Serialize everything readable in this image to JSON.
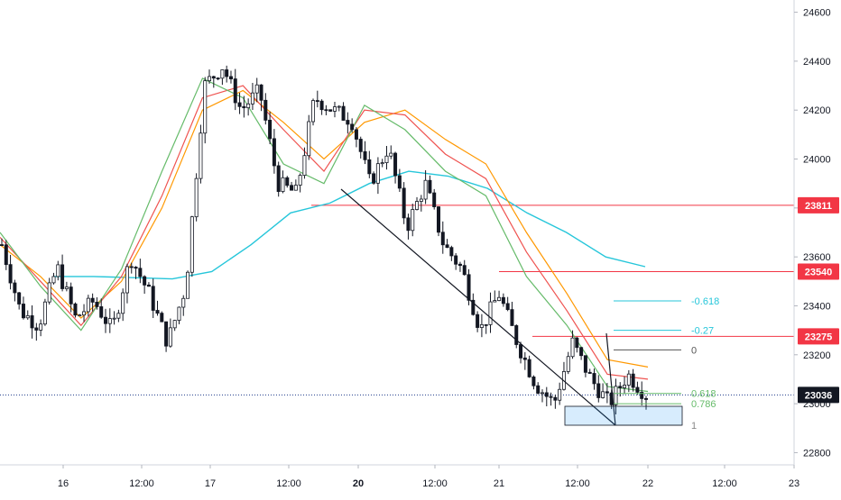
{
  "chart_data": {
    "type": "candlestick",
    "title": "",
    "xlabel": "",
    "ylabel": "",
    "ylim": [
      22750,
      24650
    ],
    "grid": false,
    "y_ticks": [
      "24600",
      "24400",
      "24200",
      "24000",
      "23800",
      "23600",
      "23400",
      "23200",
      "23000",
      "22800"
    ],
    "x_ticks": [
      "16",
      "12:00",
      "17",
      "12:00",
      "20",
      "12:00",
      "21",
      "12:00",
      "22",
      "12:00",
      "23"
    ],
    "bold_x_ticks": [
      "20"
    ],
    "price_badges": [
      {
        "label": "23811",
        "value": 23811,
        "color": "#f23645"
      },
      {
        "label": "23540",
        "value": 23540,
        "color": "#f23645"
      },
      {
        "label": "23275",
        "value": 23275,
        "color": "#f23645"
      },
      {
        "label": "23036",
        "value": 23036,
        "color": "#131722"
      }
    ],
    "horizontal_levels": [
      23811,
      23540,
      23275
    ],
    "last_price": 23036,
    "fib_levels": [
      {
        "label": "-0.618",
        "value": 23420,
        "color": "#26c6da"
      },
      {
        "label": "-0.27",
        "value": 23300,
        "color": "#26c6da"
      },
      {
        "label": "0",
        "value": 23220,
        "color": "#555555"
      },
      {
        "label": "0.618",
        "value": 23042,
        "color": "#66bb6a"
      },
      {
        "label": "0.786",
        "value": 23000,
        "color": "#66bb6a"
      },
      {
        "label": "1",
        "value": 22912,
        "color": "#888888"
      }
    ],
    "series": [
      {
        "name": "",
        "color": "#26c6da",
        "values": [
          23520,
          23520,
          23515,
          23510,
          23540,
          23650,
          23780,
          23820,
          23900,
          23950,
          23930,
          23880,
          23780,
          23700,
          23600,
          23560
        ]
      },
      {
        "name": "",
        "color": "#ff9800",
        "values": [
          23650,
          23520,
          23350,
          23500,
          23800,
          24200,
          24280,
          24150,
          24000,
          24150,
          24200,
          24080,
          23980,
          23700,
          23450,
          23180,
          23150
        ]
      },
      {
        "name": "",
        "color": "#ef5350",
        "values": [
          23680,
          23500,
          23320,
          23520,
          23850,
          24250,
          24300,
          24120,
          23950,
          24200,
          24180,
          24020,
          23920,
          23620,
          23380,
          23120,
          23100
        ]
      },
      {
        "name": "",
        "color": "#66bb6a",
        "values": [
          23700,
          23480,
          23300,
          23550,
          23950,
          24330,
          24250,
          23980,
          23900,
          24220,
          24120,
          23950,
          23850,
          23520,
          23320,
          23070,
          23050
        ]
      }
    ],
    "price_path": [
      23650,
      23380,
      23320,
      23560,
      23350,
      23420,
      23300,
      23600,
      23450,
      23250,
      23480,
      24300,
      24380,
      24200,
      24280,
      23900,
      23860,
      24250,
      24200,
      24160,
      23900,
      24050,
      23720,
      23900,
      23650,
      23550,
      23300,
      23450,
      23250,
      23080,
      23000,
      23250,
      23100,
      23000,
      23120,
      23036
    ]
  }
}
